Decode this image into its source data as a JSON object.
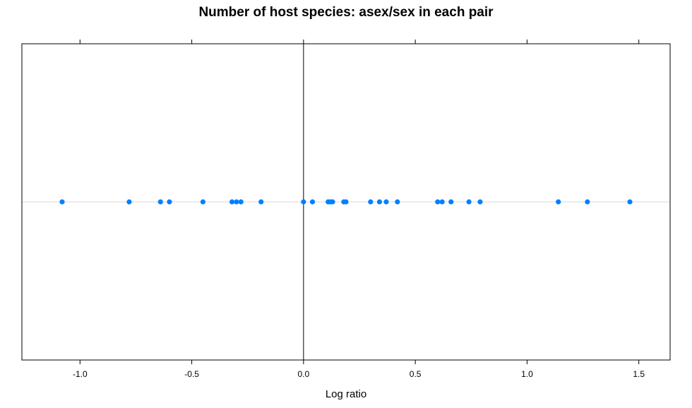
{
  "chart_data": {
    "type": "scatter",
    "title": "Number of host species: asex/sex in each pair",
    "xlabel": "Log ratio",
    "ylabel": "",
    "xlim": [
      -1.26,
      1.64
    ],
    "x_ticks": [
      -1.0,
      -0.5,
      0.0,
      0.5,
      1.0,
      1.5
    ],
    "x_tick_labels": [
      "-1.0",
      "-0.5",
      "0.0",
      "0.5",
      "1.0",
      "1.5"
    ],
    "reference_line_x": 0,
    "grid": false,
    "point_color": "#0080ff",
    "reference_color": "#e6e6e6",
    "x": [
      -1.08,
      -0.78,
      -0.64,
      -0.6,
      -0.45,
      -0.32,
      -0.3,
      -0.28,
      -0.19,
      0.0,
      0.04,
      0.11,
      0.12,
      0.13,
      0.18,
      0.19,
      0.3,
      0.34,
      0.37,
      0.42,
      0.6,
      0.62,
      0.66,
      0.74,
      0.79,
      1.14,
      1.27,
      1.46
    ]
  }
}
